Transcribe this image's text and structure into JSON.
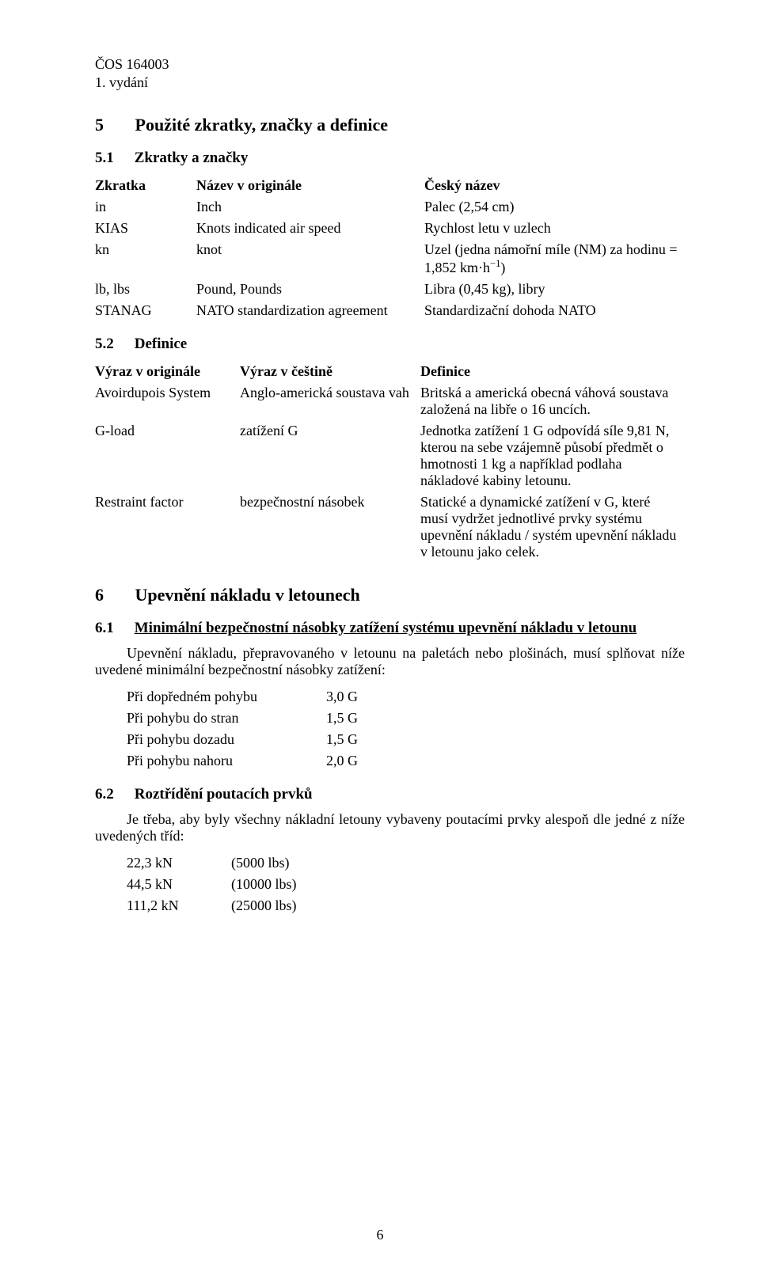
{
  "header": {
    "code": "ČOS 164003",
    "edition": "1. vydání"
  },
  "s5": {
    "num": "5",
    "title": "Použité zkratky, značky a definice",
    "s51": {
      "num": "5.1",
      "title": "Zkratky a značky",
      "cols": {
        "c1": "Zkratka",
        "c2": "Název v originále",
        "c3": "Český název"
      },
      "rows": [
        {
          "c1": "in",
          "c2": "Inch",
          "c3": "Palec (2,54 cm)"
        },
        {
          "c1": "KIAS",
          "c2": "Knots indicated air speed",
          "c3": "Rychlost letu v uzlech"
        },
        {
          "c1": "kn",
          "c2": "knot",
          "c3_a": "Uzel (jedna námořní míle (NM) za hodinu = 1,852 km·h",
          "c3_b": ")"
        },
        {
          "c1": "lb, lbs",
          "c2": "Pound, Pounds",
          "c3": "Libra (0,45 kg), libry"
        },
        {
          "c1": "STANAG",
          "c2": "NATO standardization agreement",
          "c3": "Standardizační dohoda NATO"
        }
      ],
      "exp": "−1"
    },
    "s52": {
      "num": "5.2",
      "title": "Definice",
      "cols": {
        "c1": "Výraz v originále",
        "c2": "Výraz v češtině",
        "c3": "Definice"
      },
      "rows": [
        {
          "c1": "Avoirdupois System",
          "c2": "Anglo-americká soustava vah",
          "c3": "Britská a americká obecná váhová soustava založená na libře o 16 uncích."
        },
        {
          "c1": "G-load",
          "c2": "zatížení G",
          "c3": "Jednotka zatížení 1 G odpovídá síle 9,81 N, kterou na sebe vzájemně působí předmět o hmotnosti 1 kg a například podlaha nákladové kabiny letounu."
        },
        {
          "c1": "Restraint factor",
          "c2": "bezpečnostní násobek",
          "c3": "Statické a dynamické zatížení v G, které musí vydržet jednotlivé prvky systému upevnění nákladu / systém upevnění nákladu v letounu jako celek."
        }
      ]
    }
  },
  "s6": {
    "num": "6",
    "title": "Upevnění nákladu v letounech",
    "s61": {
      "num": "6.1",
      "title": "Minimální bezpečnostní násobky zatížení systému upevnění nákladu v letounu",
      "para": "Upevnění nákladu, přepravovaného v letounu na paletách nebo plošinách, musí splňovat níže uvedené minimální bezpečnostní násobky zatížení:",
      "items": [
        {
          "k": "Při dopředném pohybu",
          "v": "3,0 G"
        },
        {
          "k": "Při pohybu do stran",
          "v": "1,5 G"
        },
        {
          "k": "Při pohybu dozadu",
          "v": "1,5 G"
        },
        {
          "k": "Při pohybu nahoru",
          "v": "2,0 G"
        }
      ]
    },
    "s62": {
      "num": "6.2",
      "title": "Roztřídění poutacích prvků",
      "para": "Je třeba, aby byly všechny nákladní letouny vybaveny poutacími prvky alespoň dle jedné z níže uvedených tříd:",
      "items": [
        {
          "k": "22,3 kN",
          "v": "(5000 lbs)"
        },
        {
          "k": "44,5 kN",
          "v": "(10000 lbs)"
        },
        {
          "k": "111,2 kN",
          "v": "(25000 lbs)"
        }
      ]
    }
  },
  "page_number": "6"
}
